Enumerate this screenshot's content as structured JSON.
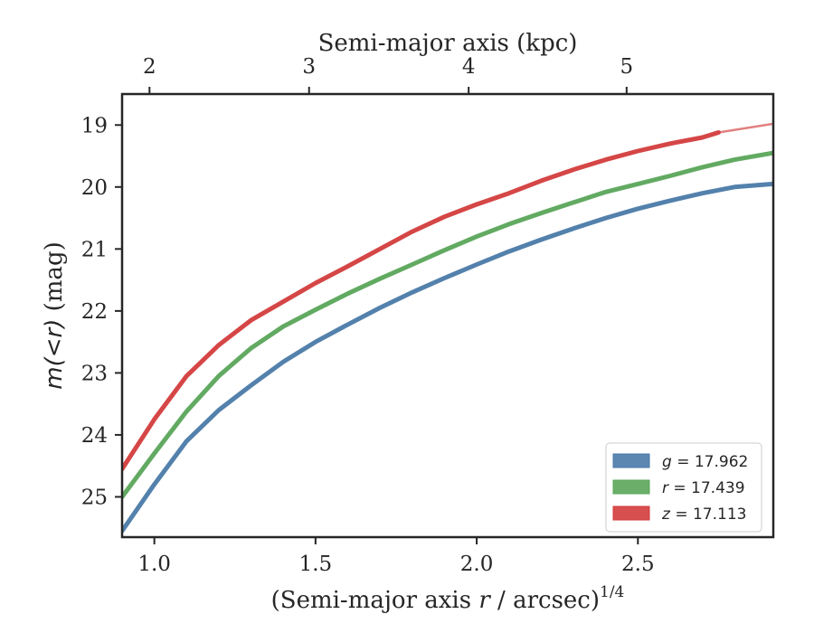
{
  "chart_data": {
    "type": "line",
    "xlabel": "(Semi-major axis r / arcsec)^(1/4)",
    "xlabel_parts": {
      "prefix": "(Semi-major axis ",
      "var": "r",
      "suffix": " / arcsec)",
      "sup": "1/4"
    },
    "x2label": "Semi-major axis (kpc)",
    "ylabel": "m(<r) (mag)",
    "ylabel_parts": {
      "math": "m(<r)",
      "unit": " (mag)"
    },
    "xlim": [
      0.9,
      2.92
    ],
    "ylim": [
      25.65,
      18.5
    ],
    "y_inverted": true,
    "xticks": [
      1.0,
      1.5,
      2.0,
      2.5
    ],
    "xtick_labels": [
      "1.0",
      "1.5",
      "2.0",
      "2.5"
    ],
    "yticks": [
      19,
      20,
      21,
      22,
      23,
      24,
      25
    ],
    "ytick_labels": [
      "19",
      "20",
      "21",
      "22",
      "23",
      "24",
      "25"
    ],
    "x2ticks_kpc": [
      2,
      3,
      4,
      5
    ],
    "x2tick_labels": [
      "2",
      "3",
      "4",
      "5"
    ],
    "x2tick_positions_x": [
      0.985,
      1.48,
      1.975,
      2.465
    ],
    "legend_position": "lower-right",
    "series": [
      {
        "name": "g = 17.962",
        "legend_var": "g",
        "legend_value": "= 17.962",
        "color": "#4a7aa8",
        "x": [
          0.9,
          1.0,
          1.1,
          1.2,
          1.3,
          1.4,
          1.5,
          1.6,
          1.7,
          1.8,
          1.9,
          2.0,
          2.1,
          2.2,
          2.3,
          2.4,
          2.5,
          2.6,
          2.7,
          2.8,
          2.92
        ],
        "y": [
          25.55,
          24.8,
          24.1,
          23.6,
          23.2,
          22.82,
          22.5,
          22.22,
          21.95,
          21.7,
          21.47,
          21.25,
          21.04,
          20.85,
          20.67,
          20.5,
          20.35,
          20.22,
          20.1,
          20.0,
          19.95
        ]
      },
      {
        "name": "r = 17.439",
        "legend_var": "r",
        "legend_value": "= 17.439",
        "color": "#5aa55a",
        "x": [
          0.9,
          1.0,
          1.1,
          1.2,
          1.3,
          1.4,
          1.5,
          1.6,
          1.7,
          1.8,
          1.9,
          2.0,
          2.1,
          2.2,
          2.3,
          2.4,
          2.5,
          2.6,
          2.7,
          2.8,
          2.92
        ],
        "y": [
          25.0,
          24.3,
          23.62,
          23.05,
          22.6,
          22.25,
          21.98,
          21.72,
          21.48,
          21.25,
          21.02,
          20.8,
          20.6,
          20.42,
          20.25,
          20.08,
          19.95,
          19.82,
          19.68,
          19.56,
          19.45
        ]
      },
      {
        "name": "z = 17.113",
        "legend_var": "z",
        "legend_value": "= 17.113",
        "color": "#d33c3c",
        "x": [
          0.9,
          1.0,
          1.1,
          1.2,
          1.3,
          1.4,
          1.5,
          1.6,
          1.7,
          1.8,
          1.9,
          2.0,
          2.1,
          2.2,
          2.3,
          2.4,
          2.5,
          2.6,
          2.7,
          2.75
        ],
        "y": [
          24.55,
          23.75,
          23.05,
          22.55,
          22.15,
          21.85,
          21.55,
          21.28,
          21.0,
          20.72,
          20.48,
          20.28,
          20.1,
          19.9,
          19.72,
          19.56,
          19.42,
          19.3,
          19.2,
          19.12
        ],
        "extension_x": [
          2.75,
          2.92
        ],
        "extension_y": [
          19.12,
          18.98
        ]
      }
    ]
  }
}
